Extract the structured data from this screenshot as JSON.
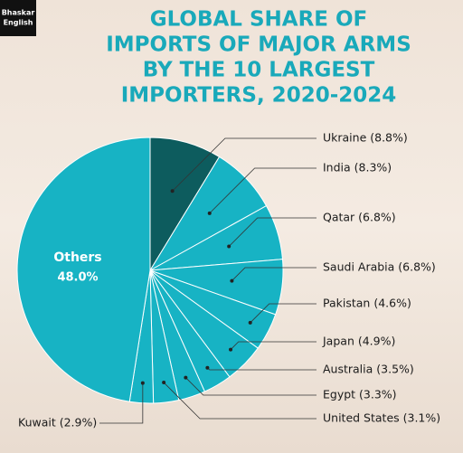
{
  "logo": [
    "Bhaskar",
    "English"
  ],
  "chart_data": {
    "type": "pie",
    "title": [
      "GLOBAL SHARE OF",
      "IMPORTS OF MAJOR ARMS",
      "BY THE 10 LARGEST",
      "IMPORTERS, 2020-2024"
    ],
    "categories": [
      "Ukraine (8.8%)",
      "India (8.3%)",
      "Qatar (6.8%)",
      "Saudi Arabia (6.8%)",
      "Pakistan (4.6%)",
      "Japan (4.9%)",
      "Australia (3.5%)",
      "Egypt (3.3%)",
      "United States (3.1%)",
      "Kuwait (2.9%)",
      "Others"
    ],
    "values": [
      8.8,
      8.3,
      6.8,
      6.8,
      4.6,
      4.9,
      3.5,
      3.3,
      3.1,
      2.9,
      48.0
    ],
    "value_labels": [
      null,
      null,
      null,
      null,
      null,
      null,
      null,
      null,
      null,
      null,
      "48.0%"
    ],
    "colors": [
      "#0d5c5e",
      "#17b3c4",
      "#17b3c4",
      "#17b3c4",
      "#17b3c4",
      "#17b3c4",
      "#17b3c4",
      "#17b3c4",
      "#17b3c4",
      "#17b3c4",
      "#17b3c4"
    ]
  }
}
